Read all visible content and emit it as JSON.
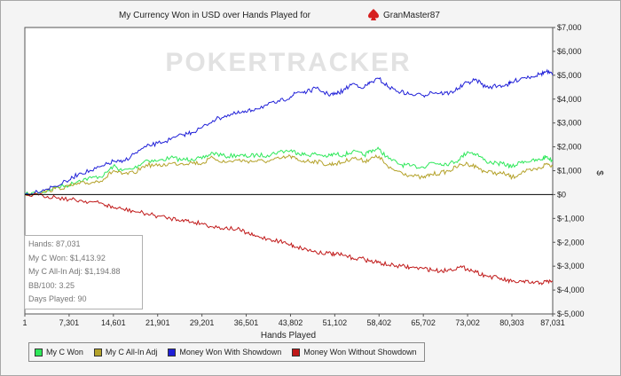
{
  "chart_data": {
    "type": "line",
    "title_prefix": "My Currency Won in USD over Hands Played for",
    "player_name": "GranMaster87",
    "xlabel": "Hands Played",
    "ylabel": "$",
    "watermark": "POKERTRACKER",
    "x_ticks": [
      "1",
      "7,301",
      "14,601",
      "21,901",
      "29,201",
      "36,501",
      "43,802",
      "51,102",
      "58,402",
      "65,702",
      "73,002",
      "80,303",
      "87,031"
    ],
    "x_tick_values": [
      1,
      7301,
      14601,
      21901,
      29201,
      36501,
      43802,
      51102,
      58402,
      65702,
      73002,
      80303,
      87031
    ],
    "xlim": [
      1,
      87031
    ],
    "y_ticks": [
      "$7,000",
      "$6,000",
      "$5,000",
      "$4,000",
      "$3,000",
      "$2,000",
      "$1,000",
      "$0",
      "$-1,000",
      "$-2,000",
      "$-3,000",
      "$-4,000",
      "$-5,000"
    ],
    "y_tick_values": [
      7000,
      6000,
      5000,
      4000,
      3000,
      2000,
      1000,
      0,
      -1000,
      -2000,
      -3000,
      -4000,
      -5000
    ],
    "ylim": [
      -5000,
      7000
    ],
    "x": [
      1,
      3000,
      5000,
      7301,
      9000,
      11000,
      13000,
      14601,
      16000,
      18000,
      20000,
      21901,
      24000,
      26000,
      27500,
      29201,
      31000,
      33000,
      35000,
      36501,
      38000,
      40000,
      42000,
      43802,
      45000,
      46500,
      48000,
      50000,
      51102,
      52500,
      54000,
      56000,
      57000,
      58402,
      60000,
      62000,
      63500,
      65702,
      67000,
      68500,
      70000,
      71500,
      73002,
      74500,
      76000,
      78000,
      79500,
      80303,
      82000,
      83500,
      85000,
      86000,
      87031
    ],
    "series": [
      {
        "name": "My C Won",
        "color": "#2ee85a",
        "values": [
          0,
          100,
          300,
          400,
          600,
          700,
          800,
          1200,
          1000,
          1100,
          1450,
          1400,
          1550,
          1450,
          1500,
          1500,
          1750,
          1600,
          1650,
          1600,
          1650,
          1650,
          1800,
          1850,
          1750,
          1650,
          1700,
          1600,
          1700,
          1650,
          1800,
          1650,
          1850,
          1900,
          1500,
          1250,
          1200,
          1150,
          1350,
          1300,
          1300,
          1450,
          1800,
          1700,
          1400,
          1300,
          1250,
          1150,
          1400,
          1400,
          1450,
          1600,
          1414
        ]
      },
      {
        "name": "My C All-In Adj",
        "color": "#b4a22a",
        "values": [
          0,
          100,
          250,
          350,
          450,
          500,
          650,
          1000,
          850,
          900,
          1250,
          1200,
          1300,
          1300,
          1350,
          1300,
          1550,
          1350,
          1450,
          1400,
          1400,
          1400,
          1500,
          1600,
          1450,
          1400,
          1400,
          1250,
          1300,
          1350,
          1550,
          1400,
          1500,
          1600,
          1100,
          950,
          800,
          700,
          850,
          900,
          1000,
          1200,
          1300,
          1150,
          950,
          900,
          850,
          700,
          950,
          1000,
          1100,
          1300,
          1195
        ]
      },
      {
        "name": "Money Won With Showdown",
        "color": "#2020d8",
        "values": [
          0,
          200,
          350,
          600,
          900,
          1000,
          1200,
          1400,
          1350,
          1700,
          2000,
          2150,
          2300,
          2500,
          2600,
          2800,
          3100,
          3300,
          3400,
          3450,
          3600,
          3750,
          3900,
          4100,
          4300,
          4300,
          4450,
          4200,
          4200,
          4350,
          4650,
          4500,
          4700,
          4850,
          4500,
          4300,
          4200,
          4150,
          4300,
          4250,
          4250,
          4450,
          4700,
          4800,
          4500,
          4550,
          4600,
          4700,
          4900,
          4950,
          5050,
          5150,
          5000
        ]
      },
      {
        "name": "Money Won Without Showdown",
        "color": "#c01818",
        "values": [
          0,
          -50,
          -100,
          -200,
          -250,
          -300,
          -400,
          -550,
          -600,
          -700,
          -800,
          -900,
          -1000,
          -1050,
          -1150,
          -1200,
          -1350,
          -1400,
          -1450,
          -1600,
          -1750,
          -1850,
          -1950,
          -2100,
          -2200,
          -2300,
          -2400,
          -2450,
          -2500,
          -2550,
          -2650,
          -2700,
          -2800,
          -2850,
          -2950,
          -3000,
          -3050,
          -3100,
          -3150,
          -3200,
          -3150,
          -3050,
          -3100,
          -3250,
          -3400,
          -3500,
          -3600,
          -3650,
          -3650,
          -3700,
          -3700,
          -3650,
          -3620
        ]
      }
    ],
    "legend_position": "bottom-left",
    "grid": false
  },
  "stats": {
    "hands": "Hands: 87,031",
    "won": "My C Won: $1,413.92",
    "allin": "My C All-In Adj: $1,194.88",
    "bb100": "BB/100: 3.25",
    "days": "Days Played: 90"
  },
  "legend": [
    {
      "label": "My C Won",
      "color": "#2ee85a"
    },
    {
      "label": "My C All-In Adj",
      "color": "#b4a22a"
    },
    {
      "label": "Money Won With Showdown",
      "color": "#2020d8"
    },
    {
      "label": "Money Won Without Showdown",
      "color": "#c01818"
    }
  ],
  "icons": {
    "player_suit": "spade-icon",
    "suit_color": "#d62020"
  }
}
